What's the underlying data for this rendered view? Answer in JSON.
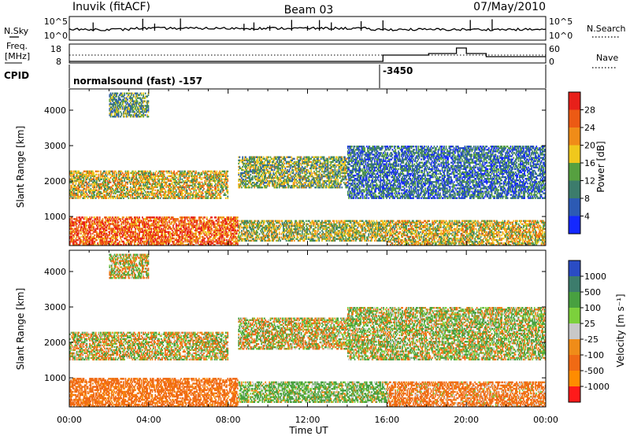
{
  "header": {
    "station": "Inuvik (fitACF)",
    "beam": "Beam 03",
    "date": "07/May/2010"
  },
  "strip_panel": {
    "left_label": "N.Sky",
    "right_label": "N.Search",
    "left_ticks": [
      "10^5",
      "10^0"
    ],
    "right_ticks": [
      "10^5",
      "10^0"
    ]
  },
  "freq_panel": {
    "left_label_1": "Freq.",
    "left_label_2": "[MHz]",
    "right_label": "Nave",
    "left_ticks": [
      "18",
      "8"
    ],
    "right_ticks": [
      "60",
      "0"
    ]
  },
  "cpid_panel": {
    "label": "CPID",
    "text_1": "normalsound (fast) -157",
    "text_2": "-3450"
  },
  "x_axis": {
    "title": "Time UT",
    "ticks": [
      "00:00",
      "04:00",
      "08:00",
      "12:00",
      "16:00",
      "20:00",
      "00:00"
    ]
  },
  "y_axis": {
    "title": "Slant Range [km]",
    "ticks": [
      "1000",
      "2000",
      "3000",
      "4000"
    ]
  },
  "power_scale": {
    "title": "Power [dB]",
    "labels": [
      "28",
      "24",
      "20",
      "16",
      "12",
      "8",
      "4"
    ],
    "colors": [
      "#e8201a",
      "#ec5a14",
      "#f08c18",
      "#f0c81c",
      "#56a040",
      "#3c7c6c",
      "#2c5ab4",
      "#1428ff"
    ]
  },
  "velocity_scale": {
    "title": "Velocity [m s⁻¹]",
    "labels": [
      "1000",
      "500",
      "100",
      "25",
      "-25",
      "-100",
      "-500",
      "-1000"
    ],
    "colors": [
      "#2a4cc4",
      "#3c7c6c",
      "#48a040",
      "#7cd03c",
      "#c8c8c8",
      "#f08c18",
      "#f06a14",
      "#ff8c00",
      "#ff1a1a"
    ]
  },
  "chart_data": [
    {
      "type": "heatmap",
      "panel": "power",
      "xlabel": "Time UT",
      "ylabel": "Slant Range [km]",
      "colorbar_label": "Power [dB]",
      "xlim_hours_ut": [
        0,
        24
      ],
      "ylim": [
        180,
        4600
      ],
      "bands": [
        {
          "t": [
            0.0,
            8.5
          ],
          "r": [
            180,
            1000
          ],
          "value": 26
        },
        {
          "t": [
            8.5,
            16.0
          ],
          "r": [
            300,
            900
          ],
          "value": 16
        },
        {
          "t": [
            16.0,
            24.0
          ],
          "r": [
            180,
            900
          ],
          "value": 18
        },
        {
          "t": [
            0.0,
            8.0
          ],
          "r": [
            1500,
            2300
          ],
          "value": 18
        },
        {
          "t": [
            8.5,
            14.0
          ],
          "r": [
            1800,
            2700
          ],
          "value": 14
        },
        {
          "t": [
            2.0,
            4.0
          ],
          "r": [
            3800,
            4500
          ],
          "value": 12
        },
        {
          "t": [
            14.0,
            24.0
          ],
          "r": [
            1500,
            3000
          ],
          "value": 8
        }
      ]
    },
    {
      "type": "heatmap",
      "panel": "velocity",
      "xlabel": "Time UT",
      "ylabel": "Slant Range [km]",
      "colorbar_label": "Velocity [m s⁻¹]",
      "xlim_hours_ut": [
        0,
        24
      ],
      "ylim": [
        180,
        4600
      ],
      "bands": [
        {
          "t": [
            0.0,
            8.5
          ],
          "r": [
            180,
            1000
          ],
          "value": -300
        },
        {
          "t": [
            8.5,
            16.0
          ],
          "r": [
            300,
            900
          ],
          "value": 150
        },
        {
          "t": [
            16.0,
            24.0
          ],
          "r": [
            180,
            900
          ],
          "value": -200
        },
        {
          "t": [
            0.0,
            8.0
          ],
          "r": [
            1500,
            2300
          ],
          "value": 0
        },
        {
          "t": [
            8.5,
            14.0
          ],
          "r": [
            1800,
            2700
          ],
          "value": 0
        },
        {
          "t": [
            2.0,
            4.0
          ],
          "r": [
            3800,
            4500
          ],
          "value": 0
        },
        {
          "t": [
            14.0,
            24.0
          ],
          "r": [
            1500,
            3000
          ],
          "value": 60
        }
      ]
    }
  ]
}
